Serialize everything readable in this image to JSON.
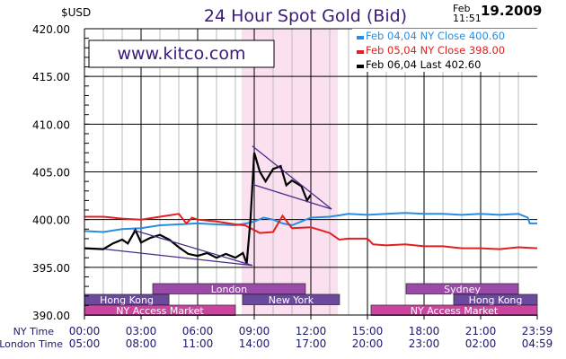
{
  "chart_data": {
    "type": "line",
    "title": "24 Hour Spot Gold (Bid)",
    "ylabel": "$USD",
    "watermark": "www.kitco.com",
    "timestamp": {
      "date_small": "Feb",
      "time_small": "11:51",
      "date_big": "19.2009"
    },
    "ylim": [
      390,
      420
    ],
    "xlim_hours": [
      0,
      24
    ],
    "y_ticks": [
      "390.00",
      "395.00",
      "400.00",
      "405.00",
      "410.00",
      "415.00",
      "420.00"
    ],
    "y_tick_values": [
      390,
      395,
      400,
      405,
      410,
      415,
      420
    ],
    "x_row_labels": [
      "NY Time",
      "London Time"
    ],
    "x_ticks_ny": [
      "00:00",
      "03:00",
      "06:00",
      "09:00",
      "12:00",
      "15:00",
      "18:00",
      "21:00",
      "23:59"
    ],
    "x_ticks_london": [
      "05:00",
      "08:00",
      "11:00",
      "14:00",
      "17:00",
      "20:00",
      "23:00",
      "02:00",
      "04:59"
    ],
    "x_tick_hours": [
      0,
      3,
      6,
      9,
      12,
      15,
      18,
      21,
      24
    ],
    "grid": true,
    "legend_placement": "top-right",
    "series": [
      {
        "name": "Feb 04,04 NY Close 400.60",
        "color": "#2a8ce0",
        "points": [
          [
            0,
            398.8
          ],
          [
            1,
            398.7
          ],
          [
            2,
            399.0
          ],
          [
            3,
            399.1
          ],
          [
            4,
            399.4
          ],
          [
            5,
            399.5
          ],
          [
            6,
            399.6
          ],
          [
            7,
            399.5
          ],
          [
            8,
            399.4
          ],
          [
            8.6,
            399.6
          ],
          [
            9,
            399.8
          ],
          [
            9.5,
            400.2
          ],
          [
            10,
            400.0
          ],
          [
            10.5,
            399.6
          ],
          [
            11,
            399.4
          ],
          [
            11.5,
            399.8
          ],
          [
            12,
            400.2
          ],
          [
            13,
            400.3
          ],
          [
            14,
            400.6
          ],
          [
            15,
            400.5
          ],
          [
            16,
            400.6
          ],
          [
            17,
            400.7
          ],
          [
            18,
            400.6
          ],
          [
            19,
            400.6
          ],
          [
            20,
            400.5
          ],
          [
            21,
            400.6
          ],
          [
            22,
            400.5
          ],
          [
            23,
            400.6
          ],
          [
            23.5,
            400.2
          ],
          [
            23.6,
            399.6
          ],
          [
            24,
            399.6
          ]
        ]
      },
      {
        "name": "Feb 05,04 NY Close 398.00",
        "color": "#e02020",
        "points": [
          [
            0,
            400.3
          ],
          [
            1,
            400.3
          ],
          [
            2,
            400.1
          ],
          [
            3,
            400.0
          ],
          [
            4,
            400.3
          ],
          [
            5,
            400.6
          ],
          [
            5.4,
            399.6
          ],
          [
            5.7,
            400.2
          ],
          [
            6,
            400.0
          ],
          [
            7,
            399.8
          ],
          [
            8,
            399.5
          ],
          [
            8.5,
            399.4
          ],
          [
            8.9,
            399.0
          ],
          [
            9.3,
            398.6
          ],
          [
            10,
            398.7
          ],
          [
            10.5,
            400.4
          ],
          [
            11,
            399.1
          ],
          [
            12,
            399.2
          ],
          [
            13,
            398.6
          ],
          [
            13.5,
            397.9
          ],
          [
            14,
            398.0
          ],
          [
            15,
            398.0
          ],
          [
            15.3,
            397.4
          ],
          [
            16,
            397.3
          ],
          [
            17,
            397.4
          ],
          [
            18,
            397.2
          ],
          [
            19,
            397.2
          ],
          [
            20,
            397.0
          ],
          [
            21,
            397.0
          ],
          [
            22,
            396.9
          ],
          [
            23,
            397.1
          ],
          [
            24,
            397.0
          ]
        ]
      },
      {
        "name": "Feb 06,04 Last 402.60",
        "color": "#000000",
        "points": [
          [
            0,
            397.0
          ],
          [
            1,
            396.9
          ],
          [
            1.5,
            397.5
          ],
          [
            2,
            397.9
          ],
          [
            2.3,
            397.5
          ],
          [
            2.7,
            398.9
          ],
          [
            3,
            397.6
          ],
          [
            3.5,
            398.1
          ],
          [
            4,
            398.4
          ],
          [
            4.5,
            397.9
          ],
          [
            5,
            397.1
          ],
          [
            5.5,
            396.4
          ],
          [
            6,
            396.2
          ],
          [
            6.5,
            396.5
          ],
          [
            7,
            396.0
          ],
          [
            7.5,
            396.4
          ],
          [
            8,
            396.0
          ],
          [
            8.4,
            396.5
          ],
          [
            8.6,
            395.4
          ],
          [
            8.8,
            400.0
          ],
          [
            9.0,
            407.0
          ],
          [
            9.3,
            405.0
          ],
          [
            9.6,
            404.0
          ],
          [
            10,
            405.3
          ],
          [
            10.4,
            405.6
          ],
          [
            10.7,
            403.6
          ],
          [
            11,
            404.1
          ],
          [
            11.5,
            403.5
          ],
          [
            11.8,
            402.0
          ],
          [
            12,
            402.6
          ]
        ]
      }
    ],
    "trendlines": [
      {
        "from": [
          1.1,
          396.9
        ],
        "to": [
          8.9,
          395.2
        ]
      },
      {
        "from": [
          2.6,
          398.9
        ],
        "to": [
          8.9,
          395.2
        ]
      },
      {
        "from": [
          8.9,
          407.7
        ],
        "to": [
          13.1,
          401.1
        ]
      },
      {
        "from": [
          8.9,
          403.7
        ],
        "to": [
          13.1,
          401.1
        ]
      }
    ],
    "highlight_band_hours": [
      8.33,
      13.43
    ],
    "sessions": [
      {
        "label": "London",
        "row": 0,
        "start": 3.62,
        "end": 11.71,
        "color": "#9a4aa8"
      },
      {
        "label": "Sydney",
        "row": 0,
        "start": 17.05,
        "end": 23.0,
        "color": "#9a4aa8"
      },
      {
        "label": "Hong Kong",
        "row": 1,
        "start": 0,
        "end": 4.48,
        "color": "#6b4a9e"
      },
      {
        "label": "New York",
        "row": 1,
        "start": 8.38,
        "end": 13.52,
        "color": "#6b4a9e"
      },
      {
        "label": "Hong Kong",
        "row": 1,
        "start": 19.57,
        "end": 24,
        "color": "#6b4a9e"
      },
      {
        "label": "NY Access Market",
        "row": 2,
        "start": 0,
        "end": 8.0,
        "color": "#cc44a0"
      },
      {
        "label": "NY Access Market",
        "row": 2,
        "start": 15.19,
        "end": 24,
        "color": "#cc44a0"
      }
    ]
  }
}
